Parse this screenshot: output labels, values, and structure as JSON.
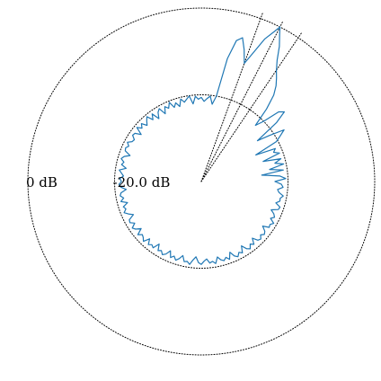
{
  "chart_data": {
    "type": "line",
    "coordinate_system": "polar",
    "radial_axis": {
      "unit": "dB",
      "ticks": [
        {
          "value": 0,
          "label": "0 dB"
        },
        {
          "value": -20,
          "label": "-20.0 dB"
        }
      ],
      "range": [
        -40,
        0
      ]
    },
    "angular_axis": {
      "unit": "degrees",
      "zero_direction": "right",
      "direction": "counterclockwise",
      "labels_shown": false
    },
    "beam_markers_deg": [
      56,
      63,
      70
    ],
    "grid": true,
    "legend": "none",
    "series": [
      {
        "color": "#1f77b4",
        "angles_deg": [
          0,
          2,
          4,
          6,
          8,
          10,
          12,
          14,
          16,
          18,
          20,
          22,
          24,
          26,
          28,
          30,
          32,
          34,
          36,
          38,
          40,
          42,
          44,
          46,
          48,
          50,
          52,
          54,
          56,
          58,
          60,
          62,
          63,
          64,
          66,
          68,
          70,
          72,
          74,
          76,
          78,
          80,
          82,
          84,
          86,
          88,
          90,
          92,
          94,
          96,
          98,
          100,
          102,
          104,
          106,
          108,
          110,
          112,
          114,
          116,
          118,
          120,
          122,
          124,
          126,
          128,
          130,
          132,
          134,
          136,
          138,
          140,
          142,
          144,
          146,
          148,
          150,
          152,
          154,
          156,
          158,
          160,
          162,
          164,
          166,
          168,
          170,
          172,
          174,
          176,
          178,
          180,
          182,
          184,
          186,
          188,
          190,
          192,
          194,
          196,
          198,
          200,
          202,
          204,
          206,
          208,
          210,
          212,
          214,
          216,
          218,
          220,
          222,
          224,
          226,
          228,
          230,
          232,
          234,
          236,
          238,
          240,
          242,
          244,
          246,
          248,
          250,
          252,
          254,
          256,
          258,
          260,
          262,
          264,
          266,
          268,
          270,
          272,
          274,
          276,
          278,
          280,
          282,
          284,
          286,
          288,
          290,
          292,
          294,
          296,
          298,
          300,
          302,
          304,
          306,
          308,
          310,
          312,
          314,
          316,
          318,
          320,
          322,
          324,
          326,
          328,
          330,
          332,
          334,
          336,
          338,
          340,
          342,
          344,
          346,
          348,
          350,
          352,
          354,
          356,
          358,
          360
        ],
        "values_db": [
          -23,
          -20.5,
          -21.8,
          -26,
          -20.9,
          -24,
          -20.6,
          -22.5,
          -20.9,
          -25,
          -20.8,
          -22,
          -21.3,
          -26,
          -20.4,
          -19,
          -17.5,
          -21,
          -24,
          -18,
          -15,
          -16,
          -20,
          -22,
          -17.5,
          -14,
          -12,
          -10.5,
          -9,
          -7,
          -4,
          -1.5,
          0,
          -1.5,
          -4,
          -8,
          -11,
          -8,
          -5.5,
          -6.5,
          -11,
          -20,
          -22,
          -20.2,
          -20.8,
          -21.5,
          -20.6,
          -21,
          -20.3,
          -22,
          -20.1,
          -20.7,
          -21.3,
          -20.4,
          -22,
          -20.9,
          -21.8,
          -20.3,
          -21.5,
          -20.8,
          -22.3,
          -20.6,
          -21.2,
          -22.5,
          -20.7,
          -21.9,
          -20.5,
          -21.2,
          -22,
          -20.8,
          -21.6,
          -20.6,
          -22.4,
          -21.1,
          -20.9,
          -21.8,
          -21.6,
          -20.7,
          -21.4,
          -20.9,
          -21.1,
          -22.5,
          -21.3,
          -20.8,
          -21.6,
          -21.2,
          -22.4,
          -20.9,
          -21.5,
          -22,
          -21.2,
          -21.6,
          -21,
          -21.4,
          -22.6,
          -21.3,
          -21,
          -21.7,
          -20.9,
          -22.3,
          -21.1,
          -21.5,
          -20.8,
          -21.6,
          -22.6,
          -21.2,
          -21,
          -21.9,
          -20.8,
          -21.3,
          -22.4,
          -20.9,
          -21.7,
          -21.4,
          -20.8,
          -22.2,
          -21,
          -21.5,
          -21.1,
          -22.6,
          -21.2,
          -21.6,
          -20.9,
          -21.4,
          -22.5,
          -21.1,
          -21.7,
          -20.9,
          -21.5,
          -22.4,
          -21.1,
          -21.3,
          -20.7,
          -21.8,
          -22.6,
          -21.3,
          -20.9,
          -21.6,
          -22.1,
          -21.1,
          -21.4,
          -20.8,
          -22.2,
          -21.4,
          -21,
          -21.6,
          -20.9,
          -22.4,
          -21.2,
          -20.7,
          -21.5,
          -21,
          -22.5,
          -21.3,
          -20.8,
          -21.7,
          -21.1,
          -22.4,
          -21.2,
          -20.9,
          -21.6,
          -21,
          -21.4,
          -22.5,
          -21.1,
          -21.3,
          -20.7,
          -21.9,
          -21.2,
          -21.7,
          -22.6,
          -21.1,
          -20.9,
          -22.1,
          -21.3,
          -21.4,
          -20.8,
          -21.9,
          -22.3,
          -21.1,
          -21.5,
          -23
        ]
      }
    ]
  }
}
